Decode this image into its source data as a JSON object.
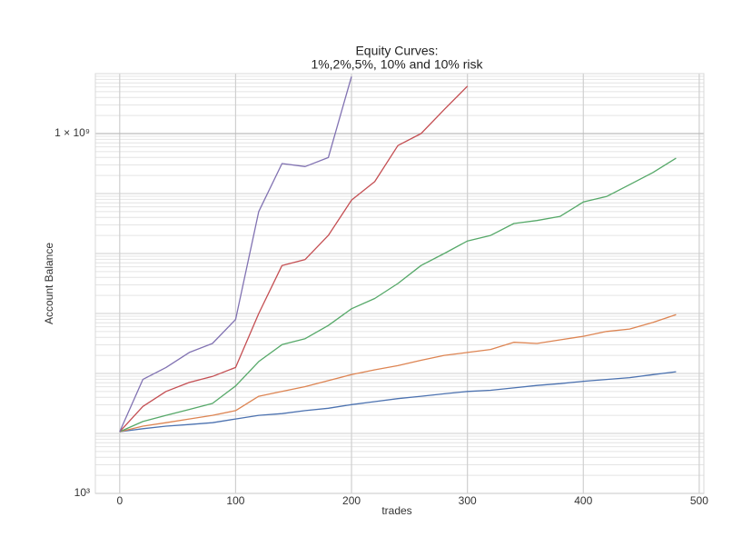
{
  "chart_data": {
    "type": "line",
    "title": [
      "Equity Curves:",
      "1%,2%,5%, 10% and 10% risk"
    ],
    "x_label": "trades",
    "y_label": "Account Balance",
    "x": [
      0,
      20,
      40,
      60,
      80,
      100,
      120,
      140,
      160,
      180,
      200,
      220,
      240,
      260,
      280,
      300,
      320,
      340,
      360,
      380,
      400,
      420,
      440,
      460,
      480
    ],
    "series": [
      {
        "color": "#4c72b0",
        "values": [
          10700,
          12000,
          13200,
          14100,
          15100,
          17400,
          20000,
          21400,
          24000,
          26300,
          30200,
          33900,
          38000,
          41700,
          45700,
          50100,
          52500,
          57500,
          63100,
          67600,
          74100,
          79400,
          85100,
          95500,
          107000
        ]
      },
      {
        "color": "#dd8452",
        "values": [
          10700,
          13200,
          15100,
          17400,
          20000,
          24000,
          41700,
          50100,
          60300,
          75900,
          95500,
          115000,
          135000,
          166000,
          200000,
          224000,
          251000,
          331000,
          316000,
          363000,
          417000,
          501000,
          550000,
          708000,
          955000
        ]
      },
      {
        "color": "#55a868",
        "values": [
          10700,
          15800,
          20000,
          25100,
          31600,
          61700,
          158000,
          302000,
          380000,
          631000,
          1200000,
          1780000,
          3160000,
          6310000,
          10000000,
          16200000,
          20000000,
          31600000,
          35500000,
          41700000,
          72400000,
          89100000,
          141000000,
          224000000,
          389000000
        ]
      },
      {
        "color": "#c44e52",
        "values": [
          10700,
          28200,
          50100,
          70800,
          89100,
          126000,
          1000000,
          6310000,
          7940000,
          20000000,
          77600000,
          158000000,
          631000000,
          1000000000,
          2510000000,
          6170000000,
          null,
          null,
          null,
          null,
          null,
          null,
          null,
          null,
          null
        ]
      },
      {
        "color": "#8172b2",
        "values": [
          10700,
          79400,
          126000,
          224000,
          316000,
          794000,
          50100000,
          316000000,
          282000000,
          398000000,
          8910000000,
          null,
          null,
          null,
          null,
          null,
          null,
          null,
          null,
          null,
          null,
          null,
          null,
          null,
          null
        ]
      }
    ],
    "xlim": [
      -21,
      504
    ],
    "xticks": [
      0,
      100,
      200,
      300,
      400,
      500
    ],
    "ylim": [
      1000,
      10000000000
    ],
    "y_scale": "log",
    "yticks": [
      {
        "value": 1000,
        "label": "10³"
      },
      {
        "value": 1000000000,
        "label": "1 × 10⁹"
      }
    ],
    "grid": true,
    "minor_grid": true
  }
}
